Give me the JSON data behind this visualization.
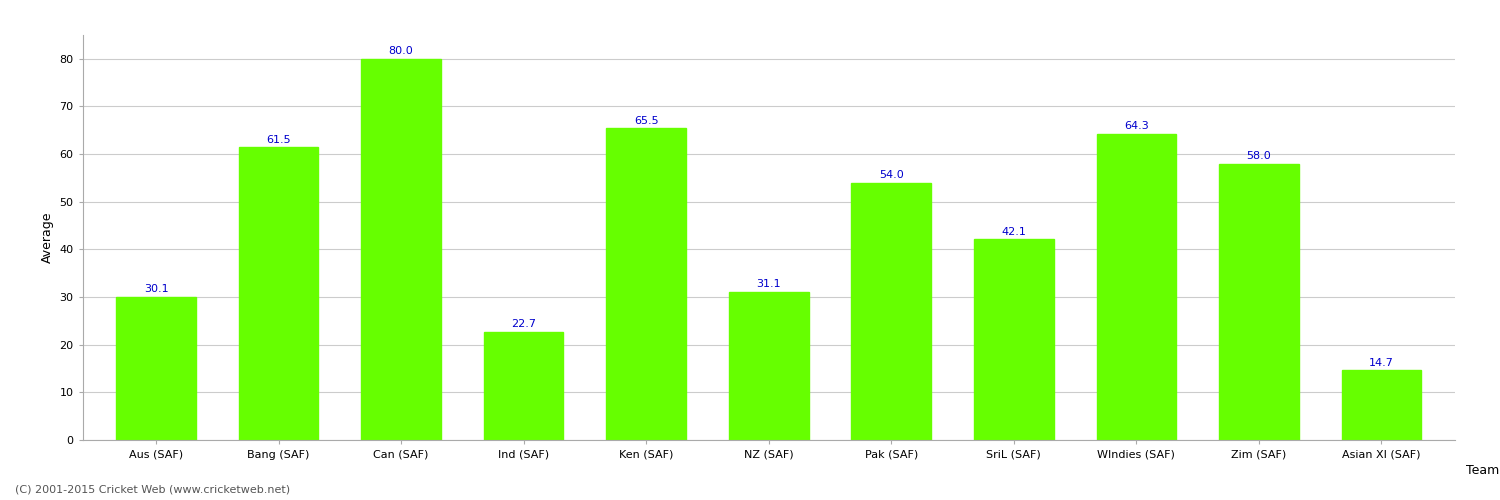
{
  "categories": [
    "Aus (SAF)",
    "Bang (SAF)",
    "Can (SAF)",
    "Ind (SAF)",
    "Ken (SAF)",
    "NZ (SAF)",
    "Pak (SAF)",
    "SriL (SAF)",
    "WIndies (SAF)",
    "Zim (SAF)",
    "Asian XI (SAF)"
  ],
  "values": [
    30.1,
    61.5,
    80.0,
    22.7,
    65.5,
    31.1,
    54.0,
    42.1,
    64.3,
    58.0,
    14.7
  ],
  "bar_color": "#66ff00",
  "bar_edge_color": "#66ff00",
  "label_color": "#0000cc",
  "xlabel": "Team",
  "ylabel": "Average",
  "ylim": [
    0,
    85
  ],
  "yticks": [
    0,
    10,
    20,
    30,
    40,
    50,
    60,
    70,
    80
  ],
  "grid_color": "#cccccc",
  "background_color": "#ffffff",
  "axis_label_fontsize": 9,
  "tick_fontsize": 8,
  "bar_label_fontsize": 8,
  "footer": "(C) 2001-2015 Cricket Web (www.cricketweb.net)"
}
